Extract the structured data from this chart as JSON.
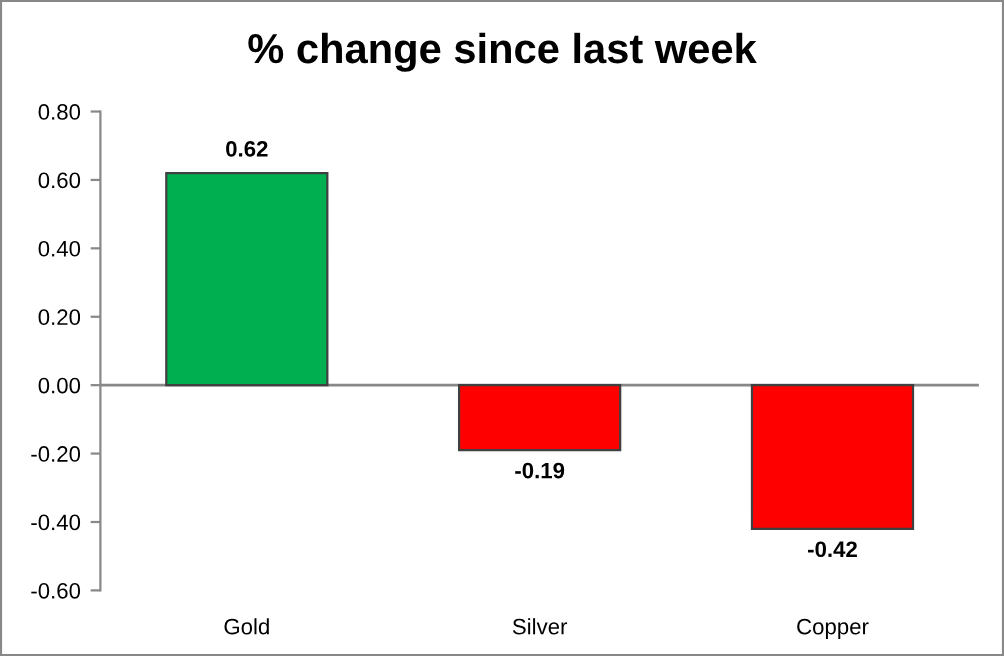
{
  "chart_data": {
    "type": "bar",
    "title": "% change since last week",
    "categories": [
      "Gold",
      "Silver",
      "Copper"
    ],
    "values": [
      0.62,
      -0.19,
      -0.42
    ],
    "colors": [
      "#00b050",
      "#ff0000",
      "#ff0000"
    ],
    "ylim": [
      -0.6,
      0.8
    ],
    "yticks": [
      {
        "value": -0.6,
        "label": "-0.60"
      },
      {
        "value": -0.4,
        "label": "-0.40"
      },
      {
        "value": -0.2,
        "label": "-0.20"
      },
      {
        "value": 0,
        "label": "0.00"
      },
      {
        "value": 0.2,
        "label": "0.20"
      },
      {
        "value": 0.4,
        "label": "0.40"
      },
      {
        "value": 0.6,
        "label": "0.60"
      },
      {
        "value": 0.8,
        "label": "0.80"
      }
    ],
    "ref_lines": [
      {
        "axis": "y",
        "value": 0,
        "color": "#888888"
      }
    ],
    "data_labels": true
  }
}
